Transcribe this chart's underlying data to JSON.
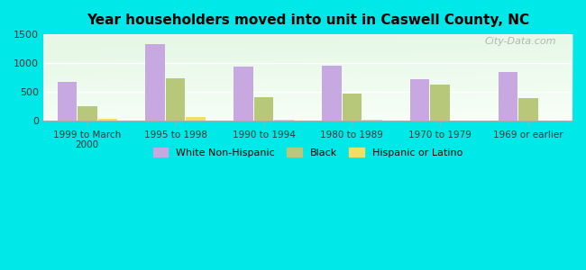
{
  "title": "Year householders moved into unit in Caswell County, NC",
  "categories": [
    "1999 to March\n2000",
    "1995 to 1998",
    "1990 to 1994",
    "1980 to 1989",
    "1970 to 1979",
    "1969 or earlier"
  ],
  "white_non_hispanic": [
    670,
    1330,
    940,
    960,
    730,
    840
  ],
  "black": [
    250,
    740,
    410,
    480,
    625,
    400
  ],
  "hispanic_or_latino": [
    40,
    65,
    20,
    15,
    10,
    10
  ],
  "bar_colors": {
    "white": "#c8a8e0",
    "black": "#b8c87a",
    "hispanic": "#f0e060"
  },
  "background_outer": "#00e8e8",
  "ylim": [
    0,
    1500
  ],
  "yticks": [
    0,
    500,
    1000,
    1500
  ],
  "legend_labels": [
    "White Non-Hispanic",
    "Black",
    "Hispanic or Latino"
  ],
  "watermark": "City-Data.com",
  "bar_width": 0.22
}
